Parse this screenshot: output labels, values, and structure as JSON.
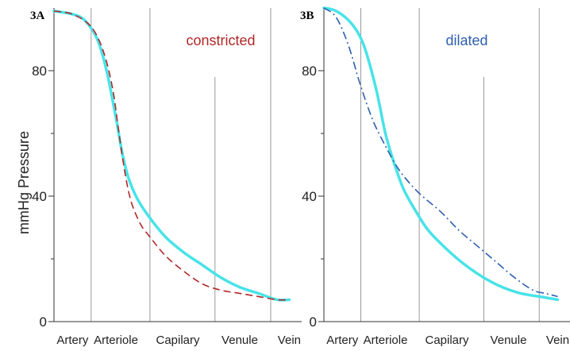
{
  "chart_data": [
    {
      "type": "line",
      "panel_label": "3A",
      "annotation": "constricted",
      "ylabel": "mmHg Pressure",
      "ylim": [
        0,
        100
      ],
      "yticks": [
        "0",
        "40",
        "80"
      ],
      "ytick_values": [
        0,
        40,
        80
      ],
      "categories": [
        "Artery",
        "Arteriole",
        "Capilary",
        "Venule",
        "Vein"
      ],
      "category_positions": [
        0.3,
        1.0,
        2.0,
        3.0,
        3.8
      ],
      "xlim": [
        0,
        4
      ],
      "vlines": [
        0.6,
        1.55,
        2.6,
        3.5
      ],
      "colors": {
        "normal": "#48e3e8",
        "constricted": "#b02828",
        "dilated": "#2d5fb0"
      },
      "series": [
        {
          "style": "solid",
          "x": [
            0.0,
            0.3,
            0.5,
            0.7,
            0.85,
            1.0,
            1.1,
            1.2,
            1.35,
            1.55,
            1.8,
            2.1,
            2.4,
            2.7,
            3.0,
            3.3,
            3.6,
            3.8
          ],
          "y": [
            99,
            98,
            96,
            90,
            80,
            65,
            54,
            46,
            39,
            33,
            27,
            22,
            18,
            14,
            11,
            9,
            7,
            7
          ]
        },
        {
          "style": "dashed",
          "x": [
            0.0,
            0.3,
            0.6,
            0.8,
            0.95,
            1.05,
            1.15,
            1.25,
            1.4,
            1.55,
            1.8,
            2.1,
            2.4,
            2.7,
            3.0,
            3.3,
            3.6,
            3.8
          ],
          "y": [
            99,
            98,
            94,
            86,
            74,
            60,
            47,
            38,
            31,
            27,
            21,
            16,
            12,
            10,
            9,
            8,
            7,
            7
          ]
        }
      ]
    },
    {
      "type": "line",
      "panel_label": "3B",
      "annotation": "dilated",
      "ylim": [
        0,
        100
      ],
      "yticks": [
        "0",
        "40",
        "80"
      ],
      "ytick_values": [
        0,
        40,
        80
      ],
      "categories": [
        "Artery",
        "Arteriole",
        "Capilary",
        "Venule",
        "Vein"
      ],
      "category_positions": [
        0.3,
        1.0,
        2.0,
        3.0,
        3.8
      ],
      "xlim": [
        0,
        4
      ],
      "vlines": [
        0.6,
        1.55,
        2.6,
        3.5
      ],
      "series": [
        {
          "style": "solid",
          "x": [
            0.0,
            0.2,
            0.45,
            0.65,
            0.85,
            1.0,
            1.15,
            1.3,
            1.5,
            1.7,
            2.0,
            2.3,
            2.6,
            2.9,
            3.2,
            3.5,
            3.8
          ],
          "y": [
            100,
            99,
            95,
            88,
            74,
            60,
            50,
            42,
            35,
            29,
            23,
            18,
            14,
            11,
            9,
            8,
            7
          ]
        },
        {
          "style": "dashdot",
          "x": [
            0.0,
            0.2,
            0.4,
            0.6,
            0.8,
            1.0,
            1.2,
            1.4,
            1.6,
            1.9,
            2.2,
            2.5,
            2.8,
            3.1,
            3.4,
            3.6,
            3.8
          ],
          "y": [
            100,
            97,
            88,
            75,
            64,
            56,
            49,
            44,
            40,
            35,
            29,
            24,
            19,
            14,
            10,
            9,
            8
          ]
        }
      ]
    }
  ]
}
